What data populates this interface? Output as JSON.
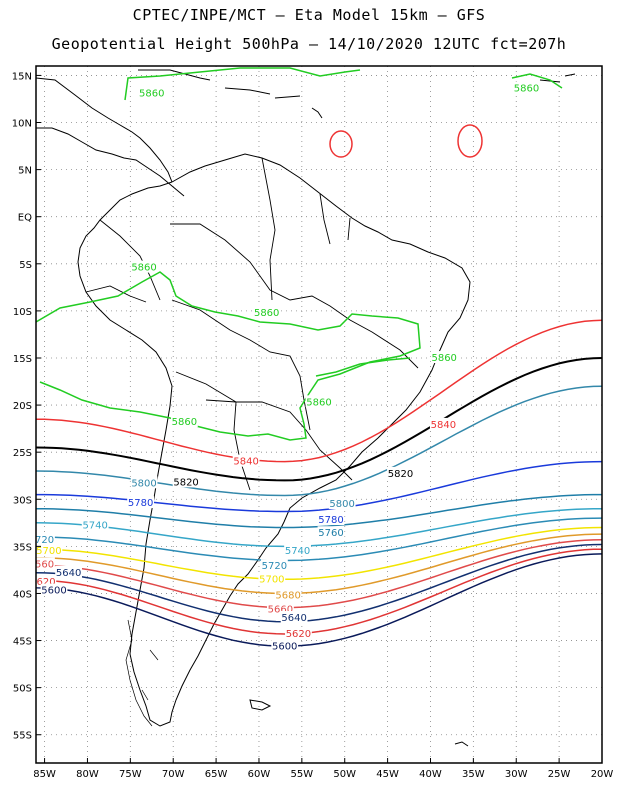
{
  "header": {
    "line1": "CPTEC/INPE/MCT –  Eta Model 15km – GFS",
    "line2": "Geopotential Height 500hPa – 14/10/2020 12UTC fct=207h"
  },
  "axes": {
    "lat_labels": [
      "15N",
      "10N",
      "5N",
      "EQ",
      "5S",
      "10S",
      "15S",
      "20S",
      "25S",
      "30S",
      "35S",
      "40S",
      "45S",
      "50S",
      "55S"
    ],
    "lat_values": [
      15,
      10,
      5,
      0,
      -5,
      -10,
      -15,
      -20,
      -25,
      -30,
      -35,
      -40,
      -45,
      -50,
      -55
    ],
    "lon_labels": [
      "85W",
      "80W",
      "75W",
      "70W",
      "65W",
      "60W",
      "55W",
      "50W",
      "45W",
      "40W",
      "35W",
      "30W",
      "25W",
      "20W"
    ],
    "lon_values": [
      -85,
      -80,
      -75,
      -70,
      -65,
      -60,
      -55,
      -50,
      -45,
      -40,
      -35,
      -30,
      -25,
      -20
    ],
    "lon_range": [
      -86,
      -20
    ],
    "lat_range": [
      -58,
      16
    ],
    "grid": "dotted"
  },
  "colors": {
    "5860": "#22cc22",
    "5840": "#ee3333",
    "5820": "#000000",
    "5800": "#3388aa",
    "5780": "#1a3adb",
    "5760": "#1f7ea8",
    "5740": "#35a6c8",
    "5720": "#2b8bb5",
    "5700": "#f2e400",
    "5680": "#e09a2a",
    "5660": "#e04a4a",
    "5640": "#123070",
    "5620": "#e03535",
    "5600": "#0a1a5a"
  },
  "contours": [
    {
      "value": 5860,
      "labels": [
        {
          "text": "5860",
          "lon": -72.5,
          "lat": 13.2
        },
        {
          "text": "5860",
          "lon": -28.8,
          "lat": 13.7
        },
        {
          "text": "5860",
          "lon": -73.4,
          "lat": -5.3
        },
        {
          "text": "5860",
          "lon": -59.1,
          "lat": -10.1
        },
        {
          "text": "5860",
          "lon": -38.4,
          "lat": -14.9
        },
        {
          "text": "5860",
          "lon": -53.0,
          "lat": -19.6
        },
        {
          "text": "5860",
          "lon": -68.7,
          "lat": -21.7
        }
      ]
    },
    {
      "value": 5840,
      "labels": [
        {
          "text": "5840",
          "lon": -61.5,
          "lat": -25.9
        },
        {
          "text": "5840",
          "lon": -38.5,
          "lat": -22.0
        }
      ]
    },
    {
      "value": 5820,
      "labels": [
        {
          "text": "5820",
          "lon": -68.5,
          "lat": -28.1
        },
        {
          "text": "5820",
          "lon": -43.5,
          "lat": -27.2
        }
      ]
    },
    {
      "value": 5800,
      "labels": [
        {
          "text": "5800",
          "lon": -73.4,
          "lat": -28.2
        },
        {
          "text": "5800",
          "lon": -50.3,
          "lat": -30.4
        }
      ]
    },
    {
      "value": 5780,
      "labels": [
        {
          "text": "5780",
          "lon": -73.8,
          "lat": -30.3
        },
        {
          "text": "5780",
          "lon": -51.6,
          "lat": -32.1
        }
      ]
    },
    {
      "value": 5760,
      "labels": [
        {
          "text": "5760",
          "lon": -51.6,
          "lat": -33.5
        }
      ]
    },
    {
      "value": 5740,
      "labels": [
        {
          "text": "5740",
          "lon": -79.1,
          "lat": -32.7
        },
        {
          "text": "5740",
          "lon": -55.5,
          "lat": -35.4
        }
      ]
    },
    {
      "value": 5720,
      "labels": [
        {
          "text": "720",
          "lon": -85.0,
          "lat": -34.2
        },
        {
          "text": "5720",
          "lon": -58.2,
          "lat": -37.0
        }
      ]
    },
    {
      "value": 5700,
      "labels": [
        {
          "text": "5700",
          "lon": -84.5,
          "lat": -35.4
        },
        {
          "text": "5700",
          "lon": -58.5,
          "lat": -38.4
        }
      ]
    },
    {
      "value": 5680,
      "labels": [
        {
          "text": "5680",
          "lon": -56.6,
          "lat": -40.1
        }
      ]
    },
    {
      "value": 5660,
      "labels": [
        {
          "text": "560",
          "lon": -85.0,
          "lat": -36.8
        },
        {
          "text": "5660",
          "lon": -57.5,
          "lat": -41.6
        }
      ]
    },
    {
      "value": 5640,
      "labels": [
        {
          "text": "5640",
          "lon": -82.2,
          "lat": -37.7
        },
        {
          "text": "5640",
          "lon": -55.9,
          "lat": -42.5
        }
      ]
    },
    {
      "value": 5620,
      "labels": [
        {
          "text": "5620",
          "lon": -85.2,
          "lat": -38.7
        },
        {
          "text": "5620",
          "lon": -55.4,
          "lat": -44.2
        }
      ]
    },
    {
      "value": 5600,
      "labels": [
        {
          "text": "5600",
          "lon": -83.9,
          "lat": -39.6
        },
        {
          "text": "5600",
          "lon": -57.0,
          "lat": -45.5
        }
      ]
    }
  ]
}
